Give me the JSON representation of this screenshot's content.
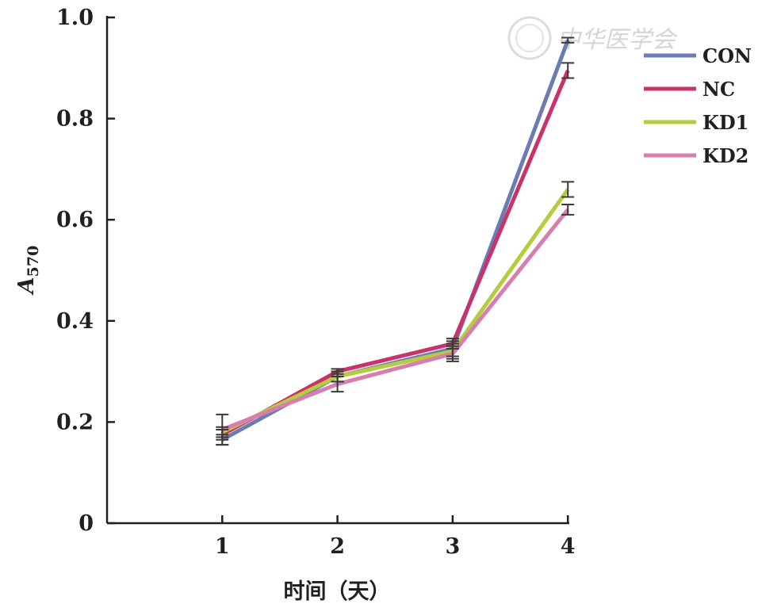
{
  "chart_data": {
    "type": "line",
    "xlabel": "时间（天）",
    "ylabel": "A",
    "ylabel_sub": "570",
    "x": [
      1,
      2,
      3,
      4
    ],
    "xlim": [
      0,
      4
    ],
    "ylim": [
      0,
      1.0
    ],
    "yticks": [
      "0",
      "0.2",
      "0.4",
      "0.6",
      "0.8",
      "1.0"
    ],
    "xticks": [
      "1",
      "2",
      "3",
      "4"
    ],
    "grid": false,
    "legend_position": "top-right",
    "series": [
      {
        "name": "CON",
        "color": "#6b7cb3",
        "values": [
          0.165,
          0.29,
          0.345,
          0.955
        ],
        "errors": [
          0.01,
          0.01,
          0.015,
          0.005
        ]
      },
      {
        "name": "NC",
        "color": "#c8336b",
        "values": [
          0.175,
          0.3,
          0.355,
          0.895
        ],
        "errors": [
          0.01,
          0.005,
          0.01,
          0.015
        ]
      },
      {
        "name": "KD1",
        "color": "#b5cc3c",
        "values": [
          0.18,
          0.29,
          0.34,
          0.66
        ],
        "errors": [
          0.01,
          0.01,
          0.015,
          0.015
        ]
      },
      {
        "name": "KD2",
        "color": "#d77db0",
        "values": [
          0.185,
          0.275,
          0.335,
          0.62
        ],
        "errors": [
          0.03,
          0.015,
          0.015,
          0.01
        ]
      }
    ]
  },
  "watermark": {
    "text": "中华医学会"
  }
}
